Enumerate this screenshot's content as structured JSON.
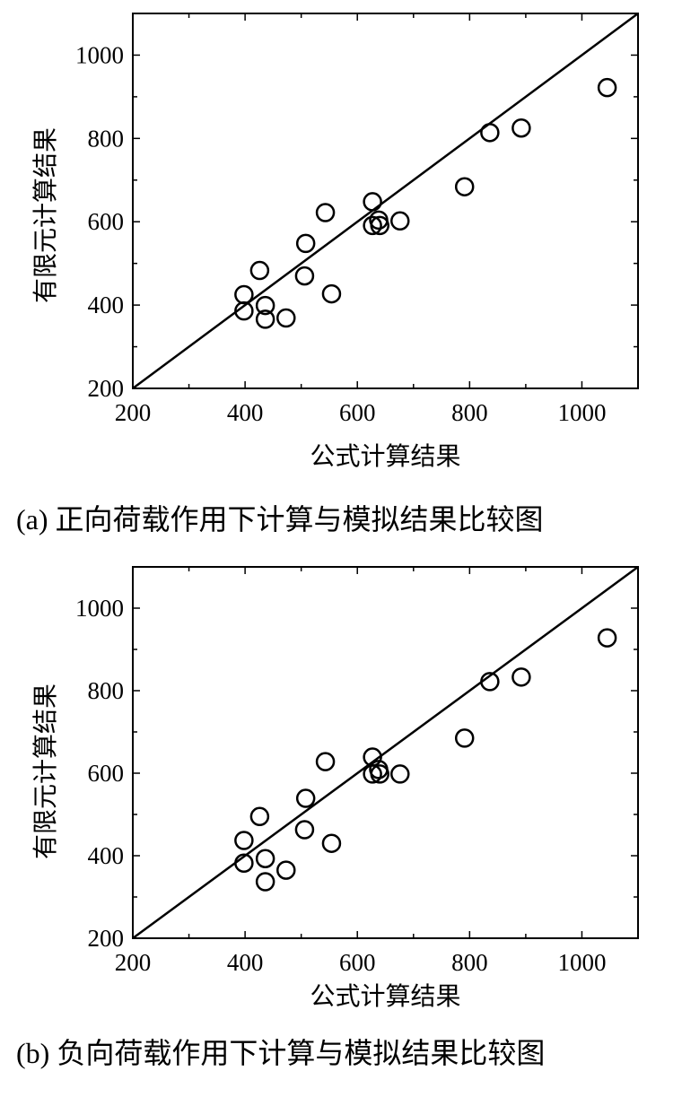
{
  "chart_data": [
    {
      "type": "scatter",
      "caption": "(a)  正向荷载作用下计算与模拟结果比较图",
      "xlabel": "公式计算结果",
      "ylabel": "有限元计算结果",
      "xlim": [
        200,
        1100
      ],
      "ylim": [
        200,
        1100
      ],
      "xticks": [
        200,
        400,
        600,
        800,
        1000
      ],
      "yticks": [
        200,
        400,
        600,
        800,
        1000
      ],
      "reference_line": "y = x",
      "points": [
        [
          398,
          425
        ],
        [
          398,
          386
        ],
        [
          426,
          483
        ],
        [
          436,
          399
        ],
        [
          436,
          366
        ],
        [
          473,
          369
        ],
        [
          506,
          470
        ],
        [
          508,
          548
        ],
        [
          543,
          622
        ],
        [
          554,
          427
        ],
        [
          627,
          648
        ],
        [
          627,
          591
        ],
        [
          638,
          604
        ],
        [
          640,
          591
        ],
        [
          676,
          602
        ],
        [
          791,
          684
        ],
        [
          836,
          814
        ],
        [
          892,
          825
        ],
        [
          1045,
          922
        ]
      ]
    },
    {
      "type": "scatter",
      "caption": "(b)  负向荷载作用下计算与模拟结果比较图",
      "xlabel": "公式计算结果",
      "ylabel": "有限元计算结果",
      "xlim": [
        200,
        1100
      ],
      "ylim": [
        200,
        1100
      ],
      "xticks": [
        200,
        400,
        600,
        800,
        1000
      ],
      "yticks": [
        200,
        400,
        600,
        800,
        1000
      ],
      "reference_line": "y = x",
      "points": [
        [
          398,
          437
        ],
        [
          398,
          382
        ],
        [
          426,
          495
        ],
        [
          436,
          393
        ],
        [
          436,
          337
        ],
        [
          473,
          365
        ],
        [
          506,
          463
        ],
        [
          508,
          539
        ],
        [
          543,
          628
        ],
        [
          554,
          430
        ],
        [
          627,
          639
        ],
        [
          627,
          598
        ],
        [
          638,
          609
        ],
        [
          640,
          598
        ],
        [
          676,
          598
        ],
        [
          791,
          685
        ],
        [
          836,
          822
        ],
        [
          892,
          833
        ],
        [
          1045,
          928
        ]
      ]
    }
  ]
}
